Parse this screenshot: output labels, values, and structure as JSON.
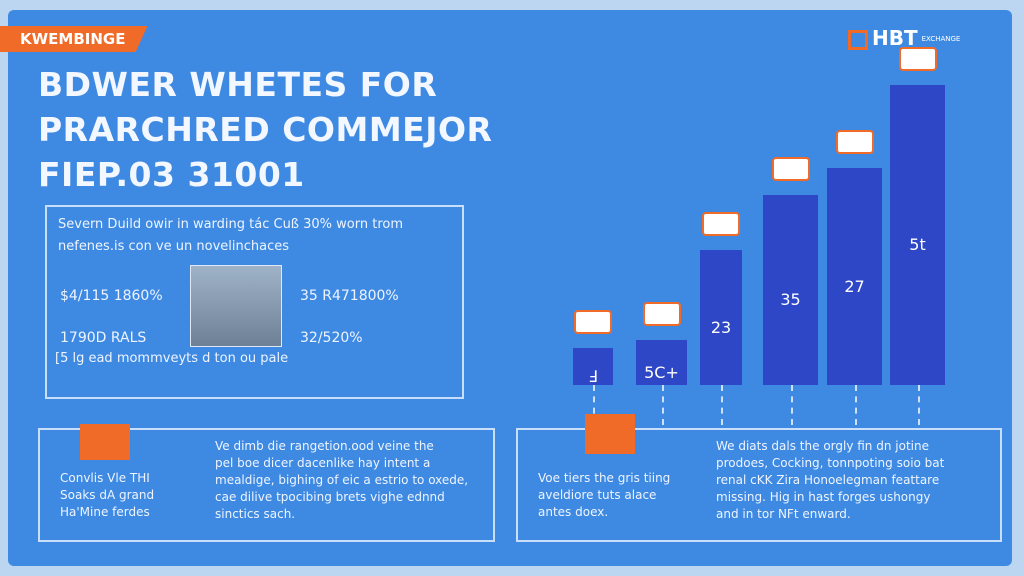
{
  "tag": "KWEMBINGE",
  "logo": {
    "mark": "HBT",
    "subtitle": "EXCHANGE"
  },
  "title": [
    "BDWER WHETES FOR",
    "PRARCHRED COMMEJOR",
    "FIEP.03 31001"
  ],
  "summary": {
    "lines": [
      "Severn Duild owir in warding tác Cuß 30% worn trom",
      "nefenes.is con ve un novelinchaces"
    ],
    "stats_left": [
      "$4/115 1860%",
      "1790D RALS"
    ],
    "stats_right": [
      "35 R471800%",
      "32/520%"
    ],
    "note": "[5 lg ead mommveyts d ton ou pale"
  },
  "bars": [
    "Ⅎ",
    "5C+",
    "23",
    "35",
    "27",
    "5t"
  ],
  "panels": [
    {
      "caption": [
        "Convlis Vle THI",
        "Soaks dA grand",
        "Ha'Mine ferdes"
      ],
      "text": [
        "Ve dimb die rangetion.ood veine the",
        "pel boe dicer dacenlike hay intent a",
        "mealdige, bighing of eic a estrio to oxede,",
        "cae dilive tpocibing brets vighe ednnd",
        "sinctics sach."
      ]
    },
    {
      "caption": [
        "Voe tiers the gris tiing",
        "aveldiore tuts alace",
        "antes doex."
      ],
      "text": [
        "We diats dals the orgly fin dn jotine",
        "prodoes, Cocking, tonnpoting soio bat",
        "renal cKK Zira Honoelegman feattare",
        "missing. Hig in hast forges ushongy",
        "and in tor NFt enward."
      ]
    }
  ]
}
